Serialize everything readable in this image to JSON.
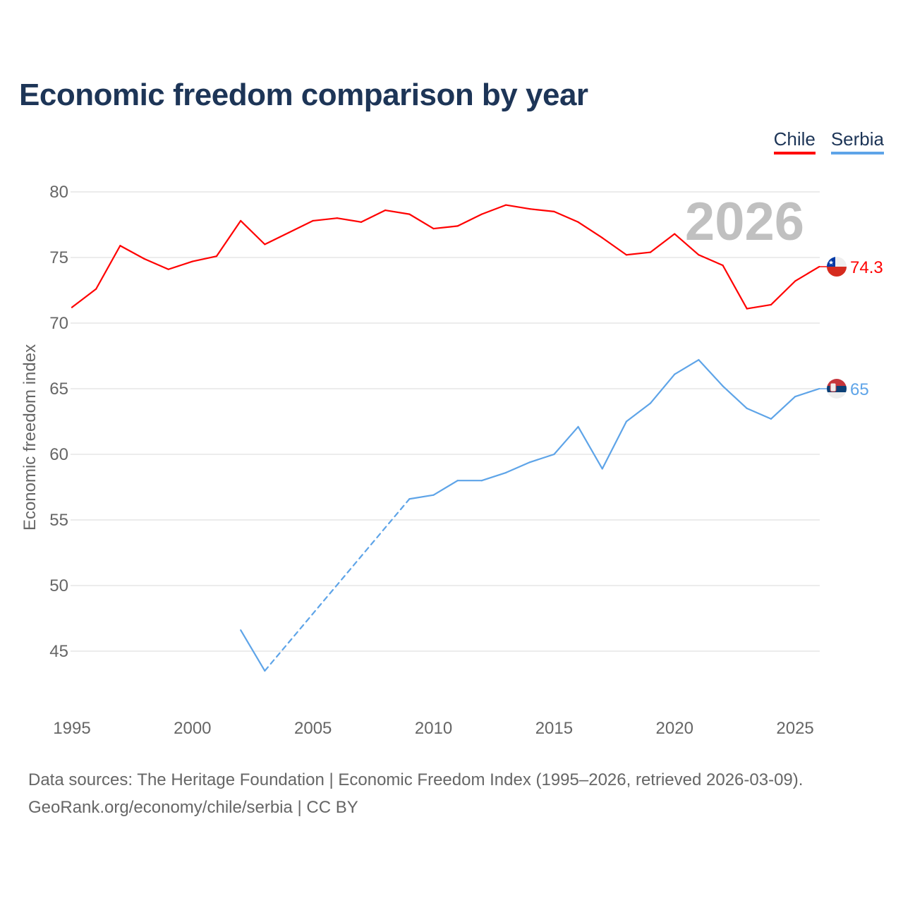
{
  "chart_data": {
    "type": "line",
    "title": "Economic freedom comparison by year",
    "xlabel": "",
    "ylabel": "Economic freedom index",
    "xlim": [
      1995,
      2026
    ],
    "ylim": [
      41,
      82
    ],
    "x_ticks": [
      1995,
      2000,
      2005,
      2010,
      2015,
      2020,
      2025
    ],
    "y_ticks": [
      45,
      50,
      55,
      60,
      65,
      70,
      75,
      80
    ],
    "grid": true,
    "legend_placement": "top-right",
    "year_label": "2026",
    "x": [
      1995,
      1996,
      1997,
      1998,
      1999,
      2000,
      2001,
      2002,
      2003,
      2004,
      2005,
      2006,
      2007,
      2008,
      2009,
      2010,
      2011,
      2012,
      2013,
      2014,
      2015,
      2016,
      2017,
      2018,
      2019,
      2020,
      2021,
      2022,
      2023,
      2024,
      2025,
      2026
    ],
    "series": [
      {
        "name": "Chile",
        "color": "#ff0000",
        "end_label": "74.3",
        "values": [
          71.2,
          72.6,
          75.9,
          74.9,
          74.1,
          74.7,
          75.1,
          77.8,
          76.0,
          76.9,
          77.8,
          78.0,
          77.7,
          78.6,
          78.3,
          77.2,
          77.4,
          78.3,
          79.0,
          78.7,
          78.5,
          77.7,
          76.5,
          75.2,
          75.4,
          76.8,
          75.2,
          74.4,
          71.1,
          71.4,
          73.2,
          74.3
        ]
      },
      {
        "name": "Serbia",
        "color": "#5ea4e8",
        "end_label": "65",
        "values": [
          null,
          null,
          null,
          null,
          null,
          null,
          null,
          46.6,
          43.5,
          null,
          null,
          null,
          null,
          null,
          56.6,
          56.9,
          58.0,
          58.0,
          58.6,
          59.4,
          60.0,
          62.1,
          58.9,
          62.5,
          63.9,
          66.1,
          67.2,
          65.2,
          63.5,
          62.7,
          64.4,
          65.0
        ]
      }
    ]
  },
  "footer": {
    "line1": "Data sources: The Heritage Foundation | Economic Freedom Index (1995–2026, retrieved 2026-03-09).",
    "line2": "GeoRank.org/economy/chile/serbia | CC BY"
  }
}
